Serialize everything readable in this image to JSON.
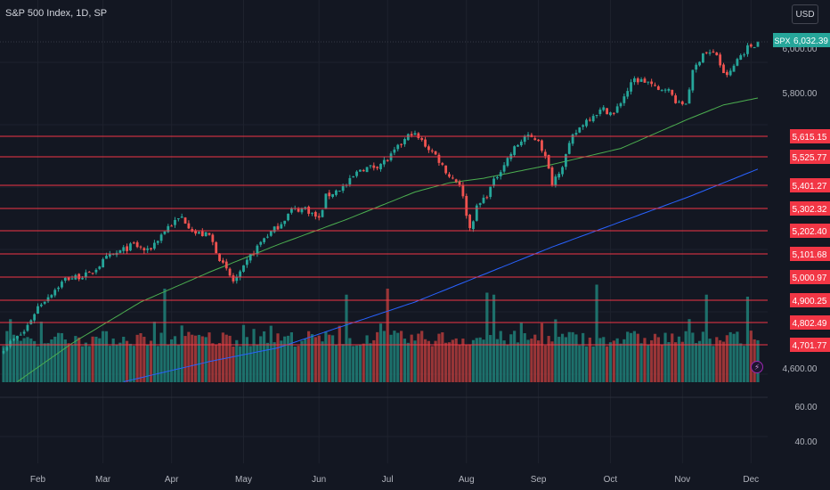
{
  "header": {
    "title": "S&P 500 Index, 1D, SP",
    "currency": "USD"
  },
  "icons": {
    "alert": "lightning-bolt-icon"
  },
  "colors": {
    "background": "#131722",
    "up": "#26a69a",
    "down": "#ef5350",
    "level": "#f23645",
    "ma_short": "#4caf50",
    "ma_long": "#2962ff",
    "ticker_tag": "#26a69a",
    "grid": "#1e222d",
    "text": "#d1d4dc",
    "axis_text": "#b2b5be"
  },
  "chart_data": {
    "type": "candlestick",
    "title": "S&P 500 Index, 1D, SP",
    "symbol": "SPX",
    "last_price": 6032.39,
    "last_price_label": "6,032.39",
    "price_axis": {
      "range": [
        4550,
        6080
      ],
      "tick_values": [
        6000,
        5800,
        4600
      ],
      "tick_labels": [
        "6,000.00",
        "5,800.00",
        "4,600.00"
      ]
    },
    "volume_axis": {
      "tick_values": [
        60,
        40
      ],
      "tick_labels": [
        "60.00",
        "40.00"
      ]
    },
    "x_axis": {
      "tick_labels": [
        "Feb",
        "Mar",
        "Apr",
        "May",
        "Jun",
        "Jul",
        "Aug",
        "Sep",
        "Oct",
        "Nov",
        "Dec"
      ],
      "tick_index": [
        10,
        29,
        49,
        70,
        92,
        112,
        135,
        156,
        177,
        198,
        218
      ]
    },
    "horizontal_levels": [
      {
        "value": 5615.15,
        "label": "5,615.15"
      },
      {
        "value": 5525.77,
        "label": "5,525.77"
      },
      {
        "value": 5401.27,
        "label": "5,401.27"
      },
      {
        "value": 5302.32,
        "label": "5,302.32"
      },
      {
        "value": 5202.4,
        "label": "5,202.40"
      },
      {
        "value": 5101.68,
        "label": "5,101.68"
      },
      {
        "value": 5000.97,
        "label": "5,000.97"
      },
      {
        "value": 4900.25,
        "label": "4,900.25"
      },
      {
        "value": 4802.49,
        "label": "4,802.49"
      },
      {
        "value": 4701.77,
        "label": "4,701.77"
      }
    ],
    "price_anchors": [
      [
        0,
        4700
      ],
      [
        6,
        4770
      ],
      [
        10,
        4880
      ],
      [
        18,
        5000
      ],
      [
        25,
        5020
      ],
      [
        30,
        5090
      ],
      [
        38,
        5150
      ],
      [
        42,
        5120
      ],
      [
        48,
        5230
      ],
      [
        52,
        5270
      ],
      [
        56,
        5200
      ],
      [
        60,
        5190
      ],
      [
        64,
        5060
      ],
      [
        67,
        4990
      ],
      [
        69,
        5020
      ],
      [
        72,
        5100
      ],
      [
        76,
        5180
      ],
      [
        80,
        5230
      ],
      [
        84,
        5300
      ],
      [
        88,
        5310
      ],
      [
        92,
        5260
      ],
      [
        94,
        5360
      ],
      [
        100,
        5410
      ],
      [
        104,
        5480
      ],
      [
        108,
        5490
      ],
      [
        112,
        5520
      ],
      [
        116,
        5590
      ],
      [
        119,
        5640
      ],
      [
        122,
        5600
      ],
      [
        126,
        5540
      ],
      [
        130,
        5450
      ],
      [
        133,
        5420
      ],
      [
        136,
        5220
      ],
      [
        138,
        5310
      ],
      [
        141,
        5370
      ],
      [
        145,
        5480
      ],
      [
        149,
        5570
      ],
      [
        152,
        5620
      ],
      [
        156,
        5610
      ],
      [
        158,
        5530
      ],
      [
        160,
        5420
      ],
      [
        163,
        5500
      ],
      [
        166,
        5620
      ],
      [
        169,
        5680
      ],
      [
        172,
        5720
      ],
      [
        175,
        5740
      ],
      [
        178,
        5720
      ],
      [
        181,
        5800
      ],
      [
        184,
        5870
      ],
      [
        188,
        5860
      ],
      [
        191,
        5820
      ],
      [
        193,
        5840
      ],
      [
        195,
        5800
      ],
      [
        197,
        5760
      ],
      [
        199,
        5770
      ],
      [
        201,
        5900
      ],
      [
        204,
        5990
      ],
      [
        208,
        5980
      ],
      [
        210,
        5890
      ],
      [
        212,
        5900
      ],
      [
        214,
        5960
      ],
      [
        217,
        6010
      ],
      [
        220,
        6032
      ]
    ],
    "ma_short": {
      "name": "",
      "anchors": [
        [
          4,
          4552
        ],
        [
          20,
          4720
        ],
        [
          40,
          4900
        ],
        [
          60,
          5030
        ],
        [
          80,
          5150
        ],
        [
          100,
          5260
        ],
        [
          120,
          5380
        ],
        [
          130,
          5420
        ],
        [
          140,
          5440
        ],
        [
          160,
          5500
        ],
        [
          180,
          5570
        ],
        [
          200,
          5700
        ],
        [
          210,
          5760
        ],
        [
          220,
          5790
        ]
      ]
    },
    "ma_long": {
      "name": "",
      "anchors": [
        [
          35,
          4552
        ],
        [
          60,
          4640
        ],
        [
          80,
          4700
        ],
        [
          100,
          4800
        ],
        [
          120,
          4900
        ],
        [
          140,
          5020
        ],
        [
          160,
          5140
        ],
        [
          180,
          5250
        ],
        [
          200,
          5360
        ],
        [
          220,
          5480
        ]
      ]
    },
    "volume_spikes": [
      [
        47,
        1.0
      ],
      [
        100,
        0.85
      ],
      [
        112,
        1.0
      ],
      [
        141,
        0.9
      ],
      [
        143,
        0.85
      ],
      [
        173,
        1.1
      ],
      [
        205,
        0.85
      ],
      [
        217,
        0.8
      ]
    ]
  }
}
